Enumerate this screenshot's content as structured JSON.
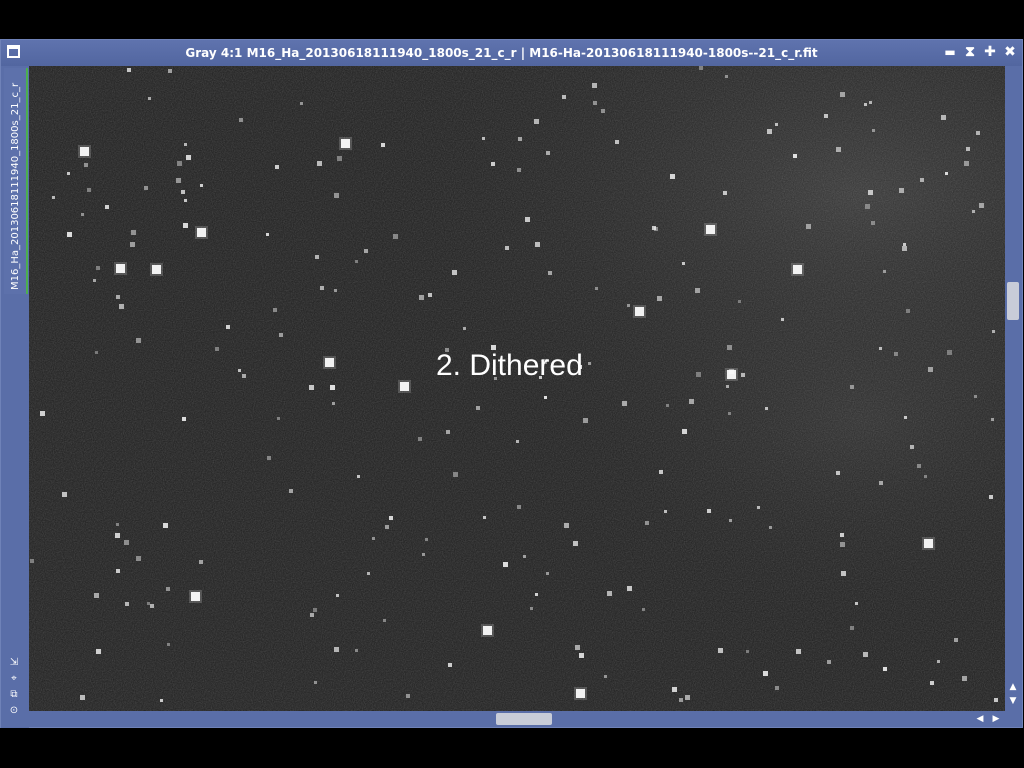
{
  "window": {
    "title": "Gray 4:1 M16_Ha_20130618111940_1800s_21_c_r | M16-Ha-20130618111940-1800s--21_c_r.fit",
    "controls": {
      "minimize": "▬",
      "shade": "⧗",
      "maximize": "✚",
      "close": "✖"
    }
  },
  "sidebar": {
    "image_tab_label": "M16_Ha_20130618111940_1800s_21_c_r",
    "tools": [
      "⇲",
      "⌖",
      "⧉",
      "⊙"
    ]
  },
  "image": {
    "overlay_text": "2. Dithered",
    "background_color": "#1c1c1c",
    "star_color": "#ffffff"
  },
  "scrollbars": {
    "vertical": {
      "up": "▲",
      "down": "▼",
      "position": 0.35
    },
    "horizontal": {
      "left": "◀",
      "right": "▶",
      "position": 0.5
    }
  }
}
